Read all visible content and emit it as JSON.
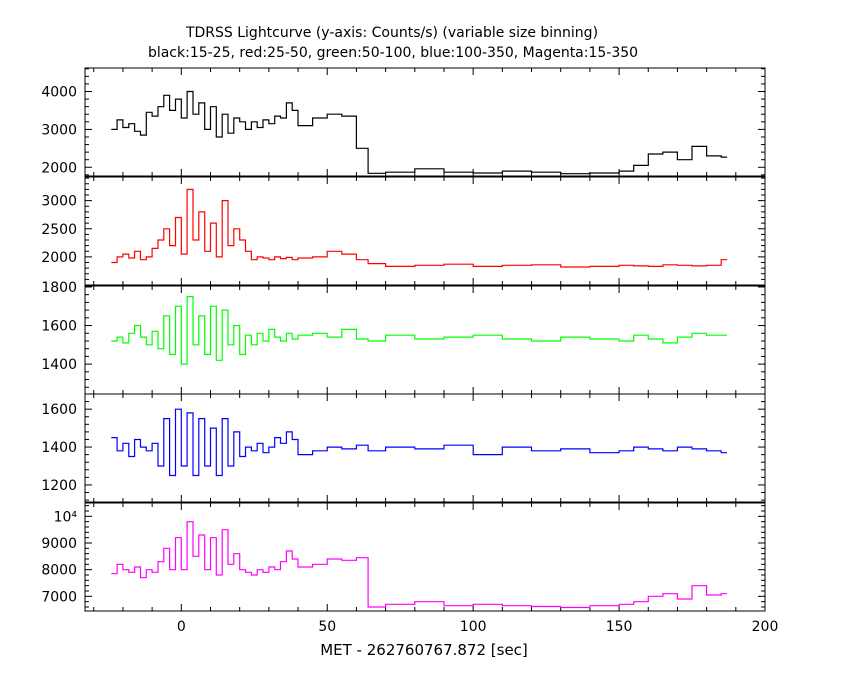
{
  "header": {
    "title": "TDRSS Lightcurve (y-axis: Counts/s) (variable size binning)",
    "subtitle": "black:15-25, red:25-50, green:50-100, blue:100-350, Magenta:15-350"
  },
  "chart_data": {
    "type": "line",
    "title": "TDRSS Lightcurve (y-axis: Counts/s) (variable size binning)",
    "subtitle": "black:15-25, red:25-50, green:50-100, blue:100-350, Magenta:15-350",
    "xlabel": "MET - 262760767.872 [sec]",
    "xlim": [
      -33,
      200
    ],
    "xticks": [
      0,
      50,
      100,
      150,
      200
    ],
    "xtick_labels": [
      "0",
      "50",
      "100",
      "150",
      "200"
    ],
    "grid": false,
    "panels": [
      {
        "name": "black:15-25",
        "color": "#000000",
        "ylim": [
          1770,
          4620
        ],
        "yticks": [
          2000,
          3000,
          4000
        ],
        "ytick_labels": [
          "2000",
          "3000",
          "4000"
        ],
        "x": [
          -24,
          -22,
          -20,
          -18,
          -16,
          -14,
          -12,
          -10,
          -8,
          -6,
          -4,
          -2,
          0,
          2,
          4,
          6,
          8,
          10,
          12,
          14,
          16,
          18,
          20,
          22,
          24,
          26,
          28,
          30,
          32,
          34,
          36,
          38,
          40,
          45,
          50,
          55,
          60,
          64,
          70,
          80,
          90,
          100,
          110,
          120,
          130,
          140,
          150,
          155,
          160,
          165,
          170,
          175,
          180,
          185
        ],
        "y": [
          3000,
          3250,
          3050,
          3150,
          2950,
          2850,
          3450,
          3350,
          3600,
          3900,
          3500,
          3800,
          3300,
          4000,
          3400,
          3700,
          3000,
          3600,
          2800,
          3400,
          2900,
          3300,
          3200,
          3000,
          3200,
          3050,
          3250,
          3150,
          3350,
          3300,
          3700,
          3500,
          3100,
          3300,
          3400,
          3350,
          2500,
          1840,
          1870,
          1960,
          1870,
          1850,
          1900,
          1870,
          1830,
          1850,
          1900,
          2050,
          2350,
          2400,
          2200,
          2550,
          2300,
          2270
        ]
      },
      {
        "name": "red:25-50",
        "color": "#ff0000",
        "ylim": [
          1500,
          3420
        ],
        "yticks": [
          2000,
          2500,
          3000
        ],
        "ytick_labels": [
          "2000",
          "2500",
          "3000"
        ],
        "x": [
          -24,
          -22,
          -20,
          -18,
          -16,
          -14,
          -12,
          -10,
          -8,
          -6,
          -4,
          -2,
          0,
          2,
          4,
          6,
          8,
          10,
          12,
          14,
          16,
          18,
          20,
          22,
          24,
          26,
          28,
          30,
          32,
          34,
          36,
          38,
          40,
          45,
          50,
          55,
          60,
          64,
          70,
          80,
          90,
          100,
          110,
          120,
          130,
          140,
          150,
          155,
          160,
          165,
          170,
          175,
          180,
          185
        ],
        "y": [
          1900,
          2000,
          2050,
          1980,
          2100,
          1950,
          2000,
          2150,
          2300,
          2500,
          2200,
          2700,
          2050,
          3200,
          2300,
          2800,
          2100,
          2600,
          2000,
          3000,
          2200,
          2500,
          2300,
          2100,
          1950,
          2000,
          1980,
          1950,
          2000,
          1970,
          1990,
          1950,
          1980,
          2000,
          2100,
          2050,
          1950,
          1880,
          1830,
          1850,
          1870,
          1830,
          1850,
          1860,
          1820,
          1830,
          1850,
          1840,
          1830,
          1860,
          1850,
          1840,
          1850,
          1950
        ]
      },
      {
        "name": "green:50-100",
        "color": "#00ff00",
        "ylim": [
          1245,
          1805
        ],
        "yticks": [
          1400,
          1600,
          1800
        ],
        "ytick_labels": [
          "1400",
          "1600",
          "1800"
        ],
        "x": [
          -24,
          -22,
          -20,
          -18,
          -16,
          -14,
          -12,
          -10,
          -8,
          -6,
          -4,
          -2,
          0,
          2,
          4,
          6,
          8,
          10,
          12,
          14,
          16,
          18,
          20,
          22,
          24,
          26,
          28,
          30,
          32,
          34,
          36,
          38,
          40,
          45,
          50,
          55,
          60,
          64,
          70,
          80,
          90,
          100,
          110,
          120,
          130,
          140,
          150,
          155,
          160,
          165,
          170,
          175,
          180,
          185
        ],
        "y": [
          1520,
          1540,
          1510,
          1560,
          1600,
          1540,
          1500,
          1570,
          1480,
          1650,
          1450,
          1700,
          1400,
          1750,
          1500,
          1650,
          1450,
          1700,
          1420,
          1680,
          1500,
          1600,
          1450,
          1550,
          1500,
          1560,
          1520,
          1580,
          1540,
          1520,
          1560,
          1530,
          1550,
          1560,
          1540,
          1580,
          1530,
          1520,
          1550,
          1530,
          1540,
          1550,
          1530,
          1520,
          1540,
          1530,
          1520,
          1550,
          1530,
          1510,
          1540,
          1560,
          1550,
          1550
        ]
      },
      {
        "name": "blue:100-350",
        "color": "#0000ff",
        "ylim": [
          1110,
          1680
        ],
        "yticks": [
          1200,
          1400,
          1600
        ],
        "ytick_labels": [
          "1200",
          "1400",
          "1600"
        ],
        "x": [
          -24,
          -22,
          -20,
          -18,
          -16,
          -14,
          -12,
          -10,
          -8,
          -6,
          -4,
          -2,
          0,
          2,
          4,
          6,
          8,
          10,
          12,
          14,
          16,
          18,
          20,
          22,
          24,
          26,
          28,
          30,
          32,
          34,
          36,
          38,
          40,
          45,
          50,
          55,
          60,
          64,
          70,
          80,
          90,
          100,
          110,
          120,
          130,
          140,
          150,
          155,
          160,
          165,
          170,
          175,
          180,
          185
        ],
        "y": [
          1450,
          1380,
          1420,
          1350,
          1440,
          1400,
          1380,
          1420,
          1300,
          1550,
          1250,
          1600,
          1300,
          1580,
          1250,
          1550,
          1300,
          1500,
          1250,
          1550,
          1300,
          1480,
          1350,
          1400,
          1380,
          1420,
          1370,
          1400,
          1450,
          1420,
          1480,
          1440,
          1360,
          1380,
          1400,
          1390,
          1410,
          1380,
          1400,
          1390,
          1410,
          1360,
          1400,
          1380,
          1390,
          1370,
          1380,
          1400,
          1390,
          1380,
          1400,
          1390,
          1380,
          1370
        ]
      },
      {
        "name": "Magenta:15-350",
        "color": "#ff00ff",
        "ylim": [
          6450,
          10500
        ],
        "yticks": [
          7000,
          8000,
          9000,
          10000
        ],
        "ytick_labels": [
          "7000",
          "8000",
          "9000",
          "10⁴"
        ],
        "x": [
          -24,
          -22,
          -20,
          -18,
          -16,
          -14,
          -12,
          -10,
          -8,
          -6,
          -4,
          -2,
          0,
          2,
          4,
          6,
          8,
          10,
          12,
          14,
          16,
          18,
          20,
          22,
          24,
          26,
          28,
          30,
          32,
          34,
          36,
          38,
          40,
          45,
          50,
          55,
          60,
          64,
          70,
          80,
          90,
          100,
          110,
          120,
          130,
          140,
          150,
          155,
          160,
          165,
          170,
          175,
          180,
          185
        ],
        "y": [
          7850,
          8200,
          8000,
          7900,
          8100,
          7700,
          8000,
          7900,
          8300,
          8800,
          8000,
          9200,
          8000,
          9800,
          8500,
          9300,
          8000,
          9200,
          7800,
          9500,
          8200,
          8600,
          8000,
          7900,
          7800,
          8000,
          7900,
          8100,
          8000,
          8300,
          8700,
          8400,
          8100,
          8200,
          8400,
          8350,
          8450,
          6600,
          6700,
          6800,
          6650,
          6700,
          6650,
          6620,
          6580,
          6650,
          6700,
          6800,
          7000,
          7100,
          6900,
          7400,
          7050,
          7100
        ]
      }
    ]
  }
}
